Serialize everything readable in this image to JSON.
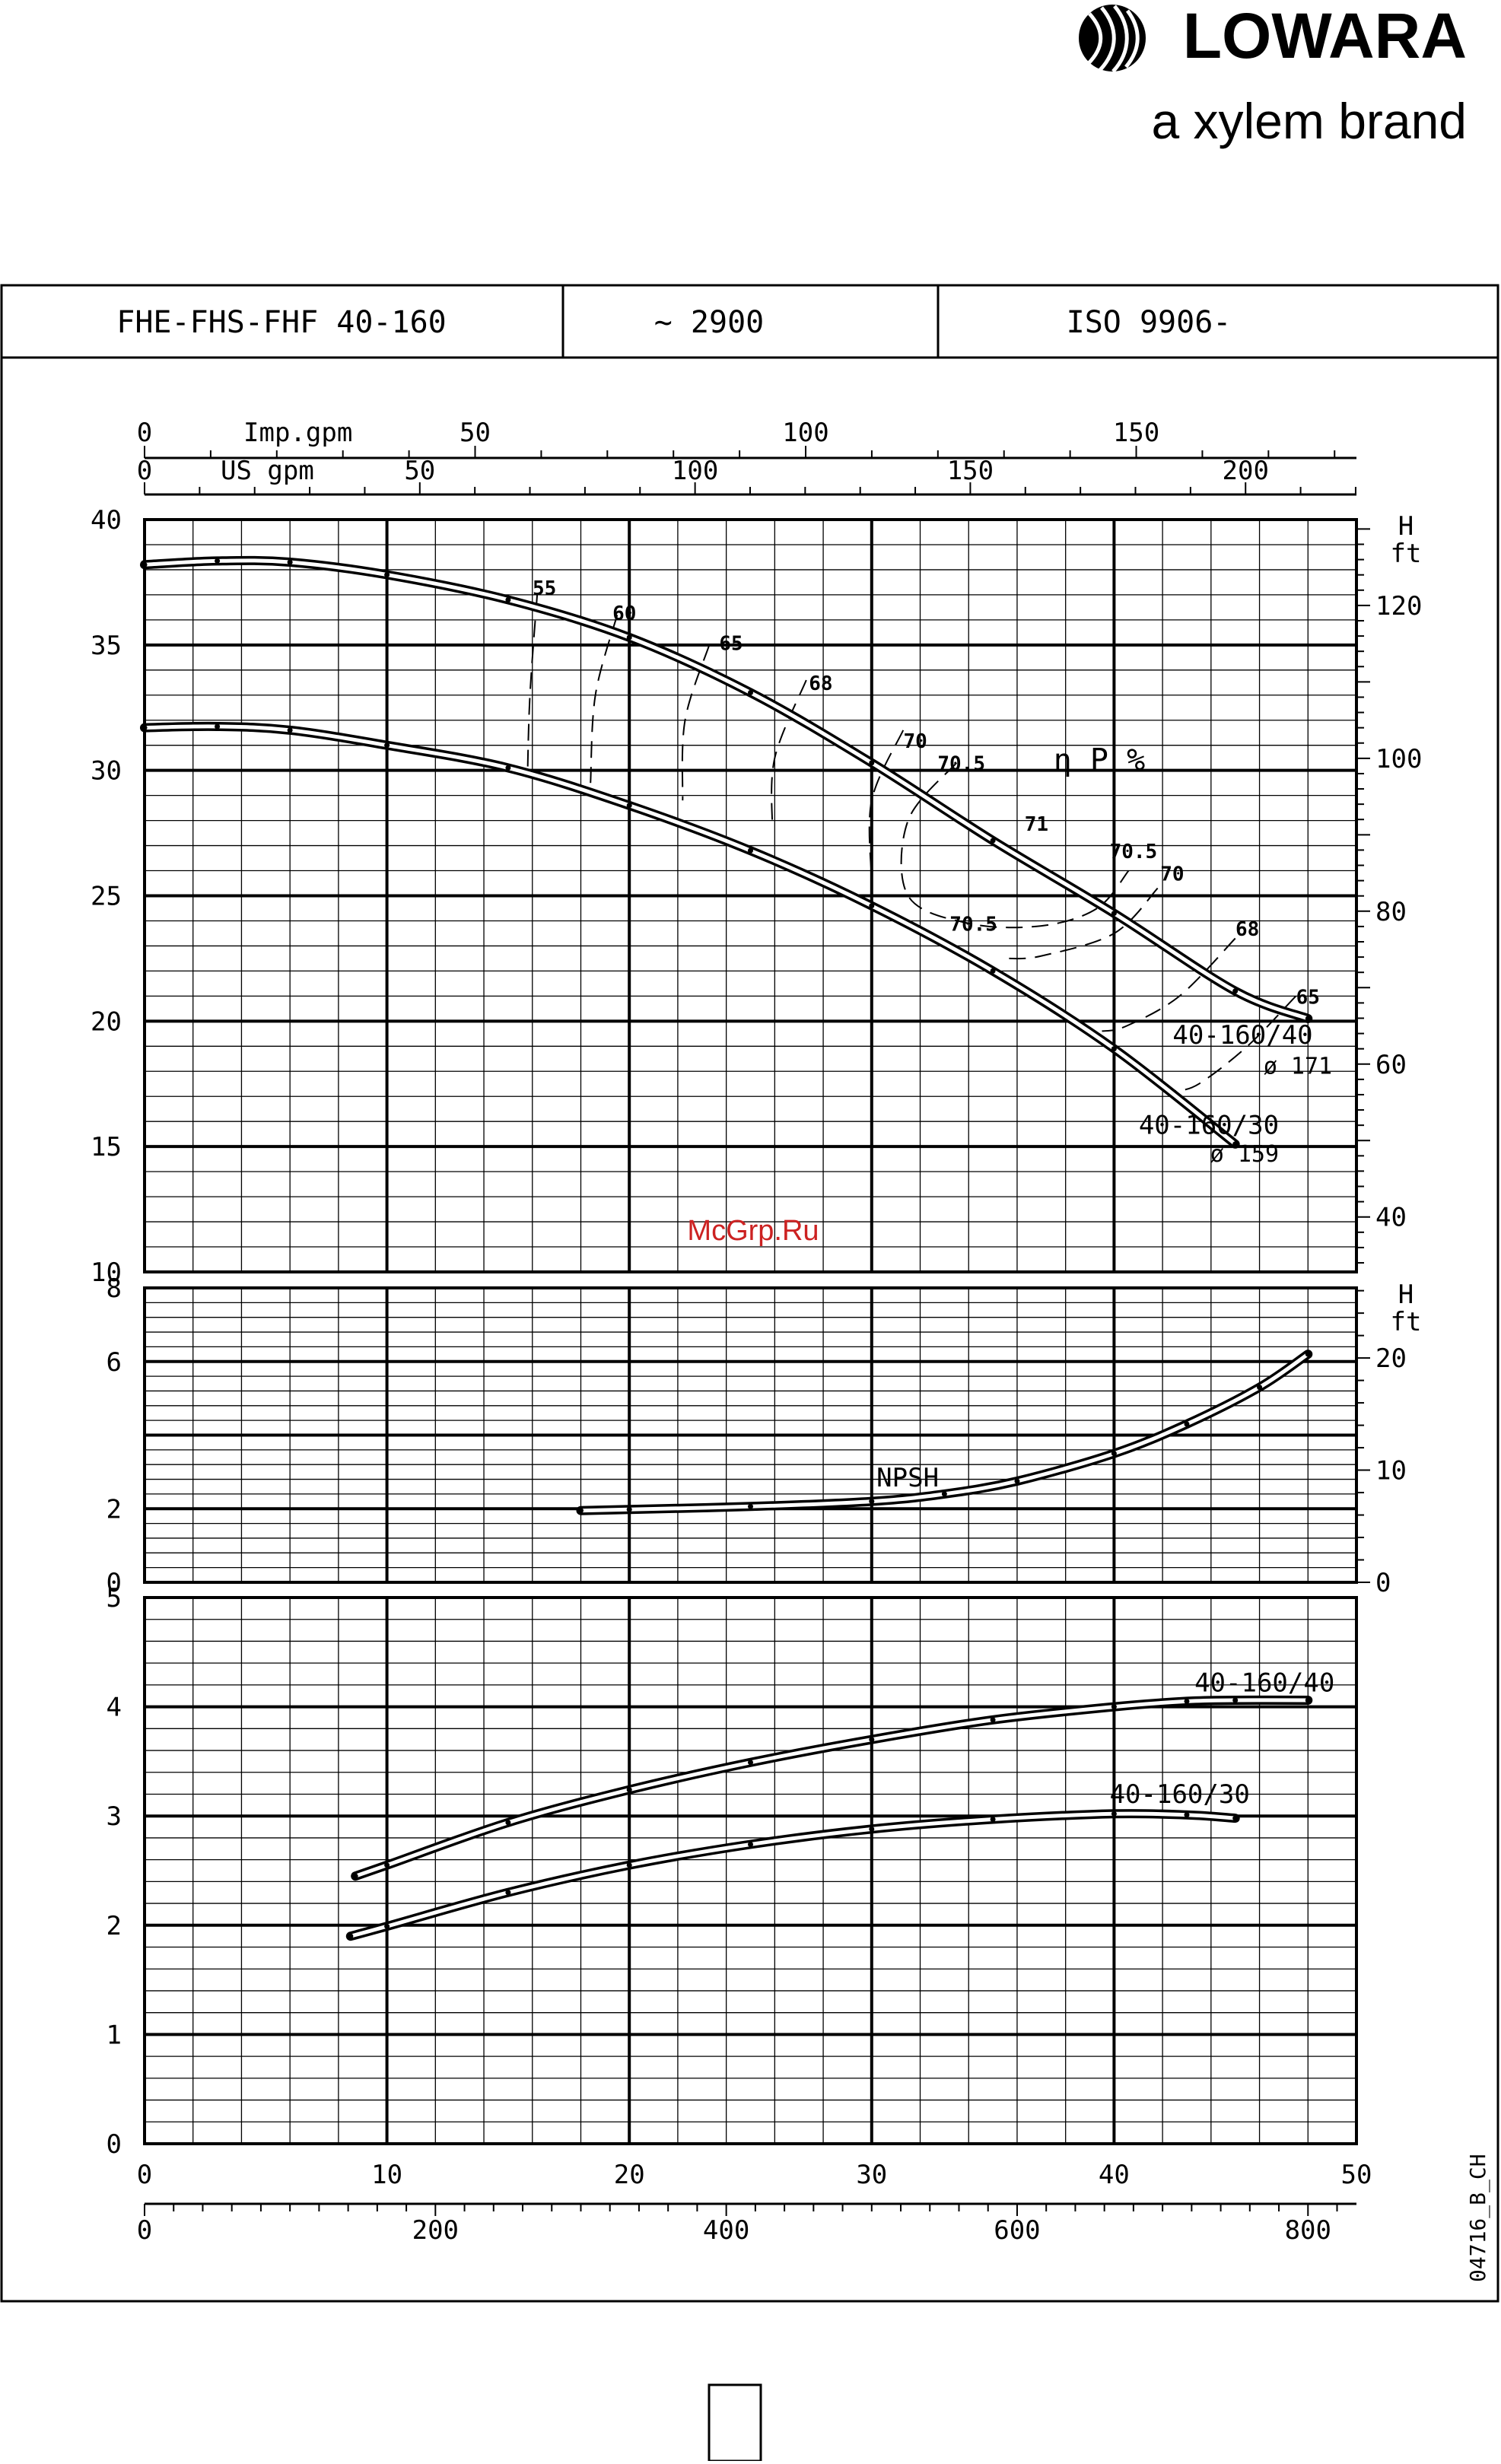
{
  "brand": {
    "name": "LOWARA",
    "tagline": "a xylem brand"
  },
  "header": {
    "model": "FHE-FHS-FHF 40-160",
    "speed": "~ 2900",
    "standard": "ISO 9906-"
  },
  "watermark": "McGrp.Ru",
  "drawing_code": "04716_B_CH",
  "chart_data": [
    {
      "type": "line",
      "panel": "head",
      "ylim": [
        10,
        40
      ],
      "xlim": [
        0,
        50
      ],
      "y_ticks": [
        10,
        15,
        20,
        25,
        30,
        35,
        40
      ],
      "y_right_label": [
        "H",
        "ft"
      ],
      "y_right_ticks": [
        40,
        60,
        80,
        100,
        120
      ],
      "top_axes": [
        {
          "label": "Imp.gpm",
          "ticks": [
            0,
            50,
            100,
            150
          ]
        },
        {
          "label": "US gpm",
          "ticks": [
            0,
            50,
            100,
            150,
            200
          ]
        }
      ],
      "grid": true,
      "series": [
        {
          "name": "40-160/40",
          "sublabel": "ø 171",
          "x": [
            0,
            3,
            6,
            10,
            15,
            20,
            25,
            30,
            35,
            40,
            45,
            48
          ],
          "y": [
            38.2,
            38.35,
            38.3,
            37.8,
            36.8,
            35.3,
            33.1,
            30.3,
            27.2,
            24.3,
            21.2,
            20.1
          ]
        },
        {
          "name": "40-160/30",
          "sublabel": "ø 159",
          "x": [
            0,
            3,
            6,
            10,
            15,
            20,
            25,
            30,
            35,
            40,
            45
          ],
          "y": [
            31.7,
            31.75,
            31.6,
            31.0,
            30.1,
            28.6,
            26.8,
            24.6,
            22.0,
            18.9,
            15.1
          ]
        }
      ],
      "efficiency_label": "η P %",
      "efficiency_labels": [
        {
          "text": "55",
          "x": 16.5,
          "y": 37.0
        },
        {
          "text": "60",
          "x": 19.8,
          "y": 36.0
        },
        {
          "text": "65",
          "x": 24.2,
          "y": 34.8
        },
        {
          "text": "68",
          "x": 27.9,
          "y": 33.2
        },
        {
          "text": "70",
          "x": 31.8,
          "y": 30.9
        },
        {
          "text": "70.5",
          "x": 33.7,
          "y": 30.0
        },
        {
          "text": "71",
          "x": 36.8,
          "y": 27.6
        },
        {
          "text": "70.5",
          "x": 40.8,
          "y": 26.5
        },
        {
          "text": "70",
          "x": 42.4,
          "y": 25.6
        },
        {
          "text": "68",
          "x": 45.5,
          "y": 23.4
        },
        {
          "text": "65",
          "x": 48.0,
          "y": 20.7
        },
        {
          "text": "70.5",
          "x": 34.2,
          "y": 23.6
        }
      ]
    },
    {
      "type": "line",
      "panel": "npsh",
      "ylim": [
        0,
        8
      ],
      "xlim": [
        0,
        50
      ],
      "y_ticks": [
        0,
        2,
        6,
        8
      ],
      "y_right_label": [
        "H",
        "ft"
      ],
      "y_right_ticks": [
        0,
        10,
        20
      ],
      "grid": true,
      "series": [
        {
          "name": "NPSH",
          "x": [
            18,
            20,
            25,
            30,
            33,
            36,
            40,
            43,
            46,
            48
          ],
          "y": [
            1.95,
            1.98,
            2.06,
            2.2,
            2.4,
            2.75,
            3.5,
            4.3,
            5.3,
            6.2
          ]
        }
      ]
    },
    {
      "type": "line",
      "panel": "power",
      "ylim": [
        0,
        5
      ],
      "xlim": [
        0,
        50
      ],
      "y_ticks": [
        0,
        1,
        2,
        3,
        4,
        5
      ],
      "x_ticks": [
        0,
        10,
        20,
        30,
        40,
        50
      ],
      "x2_ticks": [
        0,
        200,
        400,
        600,
        800
      ],
      "grid": true,
      "series": [
        {
          "name": "40-160/40",
          "x": [
            8.7,
            10,
            15,
            20,
            25,
            30,
            35,
            40,
            43,
            45,
            48
          ],
          "y": [
            2.45,
            2.55,
            2.94,
            3.24,
            3.49,
            3.7,
            3.88,
            4.0,
            4.05,
            4.06,
            4.06
          ]
        },
        {
          "name": "40-160/30",
          "x": [
            8.5,
            10,
            15,
            20,
            25,
            30,
            35,
            40,
            43,
            45
          ],
          "y": [
            1.9,
            1.99,
            2.3,
            2.55,
            2.74,
            2.88,
            2.97,
            3.02,
            3.01,
            2.98
          ]
        }
      ]
    }
  ]
}
